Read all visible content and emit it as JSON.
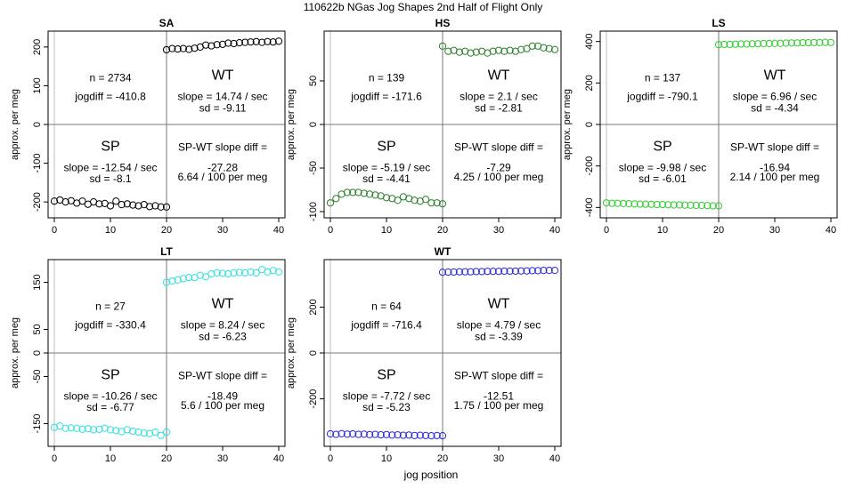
{
  "figure": {
    "title": "110622b   NGas Jog Shapes 2nd Half of Flight Only",
    "xlabel": "jog position",
    "ylabel": "approx. per meg"
  },
  "chart_data": [
    {
      "type": "scatter",
      "title": "SA",
      "xlim": [
        0,
        40
      ],
      "ylim": [
        -225,
        225
      ],
      "xticks": [
        0,
        10,
        20,
        30,
        40
      ],
      "yticks": [
        -200,
        -100,
        0,
        100,
        200
      ],
      "color": "#000000",
      "sp_x": [
        0,
        1,
        2,
        3,
        4,
        5,
        6,
        7,
        8,
        9,
        10,
        11,
        12,
        13,
        14,
        15,
        16,
        17,
        18,
        19,
        20
      ],
      "sp_values": [
        -198,
        -195,
        -200,
        -197,
        -203,
        -198,
        -206,
        -200,
        -205,
        -204,
        -210,
        -198,
        -207,
        -205,
        -208,
        -210,
        -207,
        -212,
        -210,
        -213,
        -213
      ],
      "wt_x": [
        20,
        21,
        22,
        23,
        24,
        25,
        26,
        27,
        28,
        29,
        30,
        31,
        32,
        33,
        34,
        35,
        36,
        37,
        38,
        39,
        40
      ],
      "wt_values": [
        193,
        196,
        195,
        196,
        194,
        197,
        200,
        205,
        203,
        206,
        207,
        210,
        209,
        211,
        212,
        213,
        214,
        212,
        214,
        213,
        215
      ],
      "labels": {
        "wt_name": "WT",
        "sp_name": "SP",
        "n": "n = 2734",
        "jogdiff": "jogdiff = -410.8",
        "wt_slope": "slope = 14.74 / sec",
        "wt_sd": "sd = -9.11",
        "sp_slope": "slope = -12.54 / sec",
        "sp_sd": "sd = -8.1",
        "diff_title": "SP-WT slope diff =",
        "diff_value": "-27.28",
        "diff_per": "6.64 / 100 per meg"
      }
    },
    {
      "type": "scatter",
      "title": "HS",
      "xlim": [
        0,
        40
      ],
      "ylim": [
        -100,
        100
      ],
      "xticks": [
        0,
        10,
        20,
        30,
        40
      ],
      "yticks": [
        -100,
        -50,
        0,
        50
      ],
      "color": "#2e7d2e",
      "sp_x": [
        0,
        1,
        2,
        3,
        4,
        5,
        6,
        7,
        8,
        9,
        10,
        11,
        12,
        13,
        14,
        15,
        16,
        17,
        18,
        19,
        20
      ],
      "sp_values": [
        -90,
        -85,
        -80,
        -78,
        -78,
        -78,
        -79,
        -80,
        -81,
        -82,
        -84,
        -85,
        -87,
        -83,
        -85,
        -87,
        -88,
        -86,
        -90,
        -90,
        -91
      ],
      "wt_x": [
        20,
        21,
        22,
        23,
        24,
        25,
        26,
        27,
        28,
        29,
        30,
        31,
        32,
        33,
        34,
        35,
        36,
        37,
        38,
        39,
        40
      ],
      "wt_values": [
        90,
        84,
        85,
        83,
        84,
        82,
        83,
        84,
        82,
        84,
        85,
        84,
        85,
        84,
        86,
        87,
        90,
        90,
        88,
        87,
        86
      ],
      "labels": {
        "wt_name": "WT",
        "sp_name": "SP",
        "n": "n = 139",
        "jogdiff": "jogdiff = -171.6",
        "wt_slope": "slope = 2.1 / sec",
        "wt_sd": "sd = -2.81",
        "sp_slope": "slope = -5.19 / sec",
        "sp_sd": "sd = -4.41",
        "diff_title": "SP-WT slope diff =",
        "diff_value": "-7.29",
        "diff_per": "4.25 / 100 per meg"
      }
    },
    {
      "type": "scatter",
      "title": "LS",
      "xlim": [
        0,
        40
      ],
      "ylim": [
        -420,
        420
      ],
      "xticks": [
        0,
        10,
        20,
        30,
        40
      ],
      "yticks": [
        -400,
        -200,
        0,
        200,
        400
      ],
      "color": "#33cc33",
      "sp_x": [
        0,
        1,
        2,
        3,
        4,
        5,
        6,
        7,
        8,
        9,
        10,
        11,
        12,
        13,
        14,
        15,
        16,
        17,
        18,
        19,
        20
      ],
      "sp_values": [
        -378,
        -380,
        -380,
        -381,
        -382,
        -383,
        -384,
        -384,
        -385,
        -386,
        -386,
        -387,
        -388,
        -388,
        -389,
        -389,
        -390,
        -390,
        -391,
        -392,
        -392
      ],
      "wt_x": [
        20,
        21,
        22,
        23,
        24,
        25,
        26,
        27,
        28,
        29,
        30,
        31,
        32,
        33,
        34,
        35,
        36,
        37,
        38,
        39,
        40
      ],
      "wt_values": [
        385,
        386,
        386,
        387,
        388,
        388,
        389,
        389,
        390,
        390,
        391,
        391,
        392,
        393,
        393,
        394,
        394,
        395,
        395,
        396,
        395
      ],
      "labels": {
        "wt_name": "WT",
        "sp_name": "SP",
        "n": "n = 137",
        "jogdiff": "jogdiff = -790.1",
        "wt_slope": "slope = 6.96 / sec",
        "wt_sd": "sd = -4.34",
        "sp_slope": "slope = -9.98 / sec",
        "sp_sd": "sd = -6.01",
        "diff_title": "SP-WT slope diff =",
        "diff_value": "-16.94",
        "diff_per": "2.14 / 100 per meg"
      }
    },
    {
      "type": "scatter",
      "title": "LT",
      "xlim": [
        0,
        40
      ],
      "ylim": [
        -185,
        185
      ],
      "xticks": [
        0,
        10,
        20,
        30,
        40
      ],
      "yticks": [
        -150,
        -50,
        0,
        50,
        150
      ],
      "color": "#33e0e0",
      "sp_x": [
        0,
        1,
        2,
        3,
        4,
        5,
        6,
        7,
        8,
        9,
        10,
        11,
        12,
        13,
        14,
        15,
        16,
        17,
        18,
        19,
        20
      ],
      "sp_values": [
        -158,
        -155,
        -160,
        -159,
        -160,
        -162,
        -161,
        -163,
        -162,
        -160,
        -163,
        -165,
        -167,
        -163,
        -166,
        -168,
        -170,
        -171,
        -168,
        -175,
        -168
      ],
      "wt_x": [
        20,
        21,
        22,
        23,
        24,
        25,
        26,
        27,
        28,
        29,
        30,
        31,
        32,
        33,
        34,
        35,
        36,
        37,
        38,
        39,
        40
      ],
      "wt_values": [
        150,
        153,
        155,
        158,
        160,
        160,
        165,
        162,
        168,
        170,
        169,
        168,
        170,
        171,
        170,
        172,
        170,
        177,
        172,
        175,
        172
      ],
      "labels": {
        "wt_name": "WT",
        "sp_name": "SP",
        "n": "n = 27",
        "jogdiff": "jogdiff = -330.4",
        "wt_slope": "slope = 8.24 / sec",
        "wt_sd": "sd = -6.23",
        "sp_slope": "slope = -10.26 / sec",
        "sp_sd": "sd = -6.77",
        "diff_title": "SP-WT slope diff =",
        "diff_value": "-18.49",
        "diff_per": "5.6 / 100 per meg"
      }
    },
    {
      "type": "scatter",
      "title": "WT",
      "xlim": [
        0,
        40
      ],
      "ylim": [
        -380,
        380
      ],
      "xticks": [
        0,
        10,
        20,
        30,
        40
      ],
      "yticks": [
        -200,
        0,
        200
      ],
      "color": "#2a2ad8",
      "sp_x": [
        0,
        1,
        2,
        3,
        4,
        5,
        6,
        7,
        8,
        9,
        10,
        11,
        12,
        13,
        14,
        15,
        16,
        17,
        18,
        19,
        20
      ],
      "sp_values": [
        -353,
        -355,
        -352,
        -354,
        -353,
        -355,
        -354,
        -356,
        -355,
        -357,
        -356,
        -358,
        -357,
        -359,
        -358,
        -360,
        -359,
        -360,
        -361,
        -360,
        -361
      ],
      "wt_x": [
        20,
        21,
        22,
        23,
        24,
        25,
        26,
        27,
        28,
        29,
        30,
        31,
        32,
        33,
        34,
        35,
        36,
        37,
        38,
        39,
        40
      ],
      "wt_values": [
        352,
        353,
        353,
        354,
        354,
        354,
        355,
        355,
        356,
        356,
        356,
        357,
        357,
        357,
        358,
        358,
        359,
        359,
        360,
        360,
        360
      ],
      "labels": {
        "wt_name": "WT",
        "sp_name": "SP",
        "n": "n = 64",
        "jogdiff": "jogdiff = -716.4",
        "wt_slope": "slope = 4.79 / sec",
        "wt_sd": "sd = -3.39",
        "sp_slope": "slope = -7.72 / sec",
        "sp_sd": "sd = -5.23",
        "diff_title": "SP-WT slope diff =",
        "diff_value": "-12.51",
        "diff_per": "1.75 / 100 per meg"
      }
    }
  ]
}
